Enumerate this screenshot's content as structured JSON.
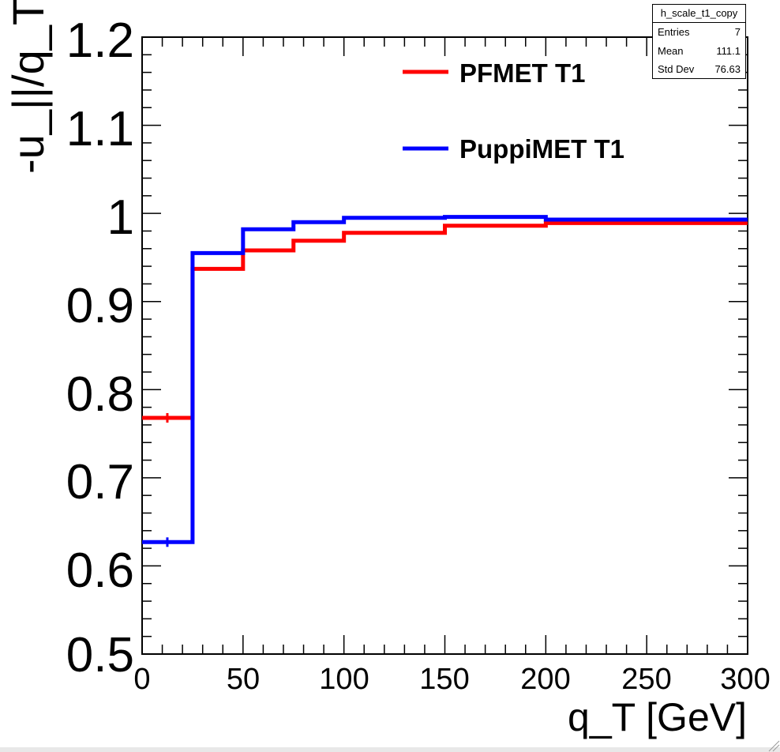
{
  "chart_data": {
    "type": "line",
    "drawstyle": "steps",
    "title": "",
    "xlabel": "q_T [GeV]",
    "ylabel": "-u_||/q_T",
    "xlim": [
      0,
      300
    ],
    "ylim": [
      0.5,
      1.2
    ],
    "x_ticks": [
      0,
      50,
      100,
      150,
      200,
      250,
      300
    ],
    "y_ticks": [
      0.5,
      0.6,
      0.7,
      0.8,
      0.9,
      1.0,
      1.1,
      1.2
    ],
    "y_tick_labels": [
      "0.5",
      "0.6",
      "0.7",
      "0.8",
      "0.9",
      "1",
      "1.1",
      "1.2"
    ],
    "bin_edges": [
      0,
      25,
      50,
      75,
      100,
      150,
      200,
      300
    ],
    "series": [
      {
        "name": "PFMET T1",
        "color": "#ff0000",
        "values": [
          0.768,
          0.937,
          0.958,
          0.969,
          0.978,
          0.986,
          0.989
        ]
      },
      {
        "name": "PuppiMET T1",
        "color": "#0000ff",
        "values": [
          0.627,
          0.955,
          0.982,
          0.99,
          0.995,
          0.996,
          0.993
        ]
      }
    ],
    "legend": {
      "position": "top-right",
      "entries": [
        "PFMET T1",
        "PuppiMET T1"
      ]
    }
  },
  "stats": {
    "title": "h_scale_t1_copy",
    "rows": [
      {
        "label": "Entries",
        "value": "7"
      },
      {
        "label": "Mean",
        "value": "111.1"
      },
      {
        "label": "Std Dev",
        "value": "76.63"
      }
    ]
  }
}
